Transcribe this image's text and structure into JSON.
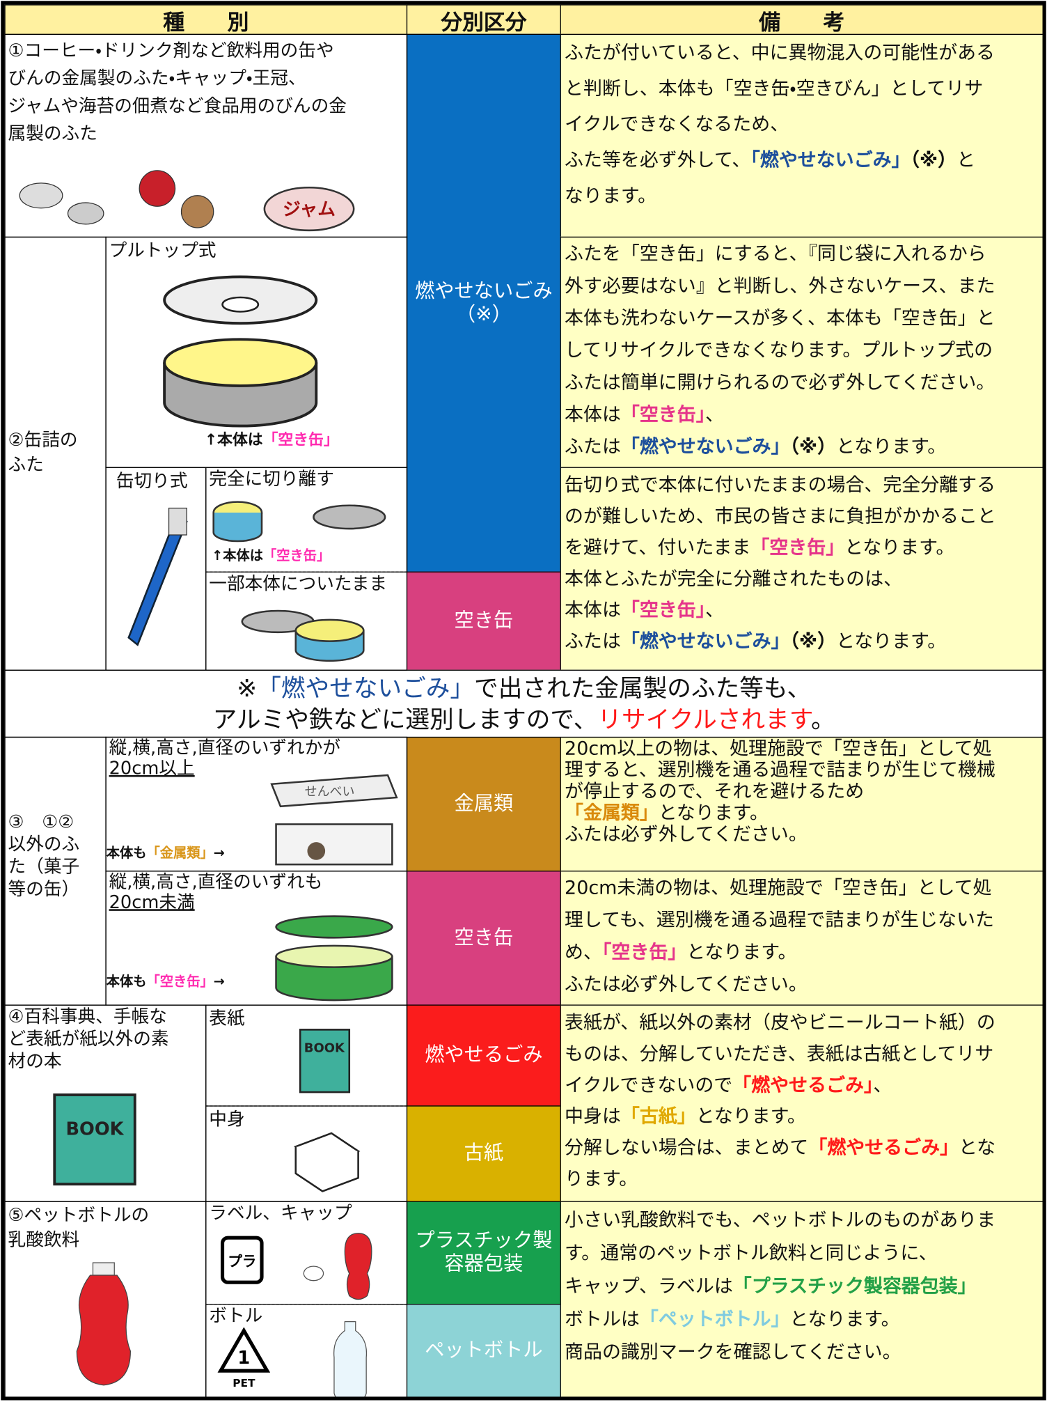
{
  "header": {
    "kind": "種　　別",
    "category": "分別区分",
    "remarks": "備　　考"
  },
  "categories": [
    {
      "label": [
        "燃やせないごみ",
        "（※）"
      ],
      "color": "#0a6fc2"
    },
    {
      "label": [
        "空き缶"
      ],
      "color": "#d8407f"
    },
    {
      "label": [
        "金属類"
      ],
      "color": "#c98a1c"
    },
    {
      "label": [
        "空き缶"
      ],
      "color": "#d8407f"
    },
    {
      "label": [
        "燃やせるごみ"
      ],
      "color": "#fb1c1c"
    },
    {
      "label": [
        "古紙"
      ],
      "color": "#d9b100"
    },
    {
      "label": [
        "プラスチック製",
        "容器包装"
      ],
      "color": "#17a04e"
    },
    {
      "label": [
        "ペットボトル"
      ],
      "color": "#8dd3d6"
    }
  ],
  "items": [
    {
      "kind": [
        [
          "①コーヒー・ドリンク剤など飲料用の缶や"
        ],
        [
          "びんの金属製のふた・キャップ・王冠、"
        ],
        [
          "ジャムや海苔の佃煮など食品用のびんの金"
        ],
        [
          "属製のふた"
        ]
      ],
      "icon_label": "ジャム"
    },
    {
      "kind": [
        [
          "②缶詰の"
        ],
        [
          "ふた"
        ]
      ],
      "subtypes": [
        {
          "label": "プルトップ式",
          "caption": [
            "↑本体は",
            {
              "text": "「空き缶」",
              "color": "#ff2bb0"
            }
          ]
        },
        {
          "label": "缶切り式",
          "variants": [
            {
              "label": "完全に切り離す",
              "caption": [
                "↑本体は",
                {
                  "text": "「空き缶」",
                  "color": "#ff2bb0"
                }
              ]
            },
            {
              "label": "一部本体についたまま"
            }
          ]
        }
      ]
    },
    {
      "kind": [
        [
          "③　①②"
        ],
        [
          "以外のふ"
        ],
        [
          "た（菓子"
        ],
        [
          "等の缶）"
        ]
      ],
      "subtypes": [
        {
          "label": [
            [
              "縦,横,高さ,直径のいずれかが"
            ],
            [
              {
                "text": "20cm以上",
                "underline": true
              }
            ]
          ],
          "caption": [
            "本体も",
            {
              "text": "「金属類」",
              "color": "#d9961a"
            },
            "→"
          ],
          "icon_label": "せんべい"
        },
        {
          "label": [
            [
              "縦,横,高さ,直径のいずれも"
            ],
            [
              {
                "text": "20cm未満",
                "underline": true
              }
            ]
          ],
          "caption": [
            "本体も",
            {
              "text": "「空き缶」",
              "color": "#ff2bb0"
            },
            "→"
          ]
        }
      ]
    },
    {
      "kind": [
        [
          "④百科事典、手帳な"
        ],
        [
          "ど表紙が紙以外の素"
        ],
        [
          "材の本"
        ]
      ],
      "icon_label": "BOOK",
      "subtypes": [
        {
          "label": "表紙",
          "icon_label": "BOOK"
        },
        {
          "label": "中身"
        }
      ]
    },
    {
      "kind": [
        [
          "⑤ペットボトルの"
        ],
        [
          "乳酸飲料"
        ]
      ],
      "subtypes": [
        {
          "label": "ラベル、キャップ",
          "icon_label": "プラ"
        },
        {
          "label": "ボトル",
          "icon_label": [
            "1",
            "PET"
          ]
        }
      ]
    }
  ],
  "remarks": [
    [
      [
        "ふたが付いていると、中に異物混入の可能性がある"
      ],
      [
        "と判断し、本体も「空き缶・空きびん」としてリサ"
      ],
      [
        "イクルできなくなるため、"
      ],
      [
        "ふた等を必ず外して、",
        {
          "text": "「燃やせないごみ」",
          "color": "#1d4f9c",
          "bold": true
        },
        {
          "text": "（※）",
          "bold": true
        },
        "と"
      ],
      [
        "なります。"
      ]
    ],
    [
      [
        "ふたを「空き缶」にすると、『同じ袋に入れるから"
      ],
      [
        "外す必要はない』と判断し、外さないケース、また"
      ],
      [
        "本体も洗わないケースが多く、本体も「空き缶」と"
      ],
      [
        "してリサイクルできなくなります。プルトップ式の"
      ],
      [
        "ふたは簡単に開けられるので必ず外してください。"
      ],
      [
        "本体は",
        {
          "text": "「空き缶」",
          "color": "#e5348a",
          "bold": true
        },
        "、"
      ],
      [
        "ふたは",
        {
          "text": "「燃やせないごみ」",
          "color": "#1d4f9c",
          "bold": true
        },
        {
          "text": "（※）",
          "bold": true
        },
        "となります。"
      ]
    ],
    [
      [
        "缶切り式で本体に付いたままの場合、完全分離する"
      ],
      [
        "のが難しいため、市民の皆さまに負担がかかること"
      ],
      [
        "を避けて、付いたまま",
        {
          "text": "「空き缶」",
          "color": "#e5348a",
          "bold": true
        },
        "となります。"
      ],
      [
        "本体とふたが完全に分離されたものは、"
      ],
      [
        "本体は",
        {
          "text": "「空き缶」",
          "color": "#e5348a",
          "bold": true
        },
        "、"
      ],
      [
        "ふたは",
        {
          "text": "「燃やせないごみ」",
          "color": "#1d4f9c",
          "bold": true
        },
        {
          "text": "（※）",
          "bold": true
        },
        "となります。"
      ]
    ],
    [
      [
        "20cm以上の物は、処理施設で「空き缶」として処"
      ],
      [
        "理すると、選別機を通る過程で詰まりが生じて機械"
      ],
      [
        "が停止するので、それを避けるため"
      ],
      [
        {
          "text": "「金属類」",
          "color": "#d98a0c",
          "bold": true
        },
        "となります。"
      ],
      [
        "ふたは必ず外してください。"
      ]
    ],
    [
      [
        "20cm未満の物は、処理施設で「空き缶」として処"
      ],
      [
        "理しても、選別機を通る過程で詰まりが生じないた"
      ],
      [
        "め、",
        {
          "text": "「空き缶」",
          "color": "#e5348a",
          "bold": true
        },
        "となります。"
      ],
      [
        "ふたは必ず外してください。"
      ]
    ],
    [
      [
        "表紙が、紙以外の素材（皮やビニールコート紙）の"
      ],
      [
        "ものは、分解していただき、表紙は古紙としてリサ"
      ],
      [
        "イクルできないので",
        {
          "text": "「燃やせるごみ」",
          "color": "#ff1a1a",
          "bold": true
        },
        "、"
      ],
      [
        "中身は",
        {
          "text": "「古紙」",
          "color": "#e0a800",
          "bold": true
        },
        "となります。"
      ],
      [
        "分解しない場合は、まとめて",
        {
          "text": "「燃やせるごみ」",
          "color": "#ff1a1a",
          "bold": true
        },
        "とな"
      ],
      [
        "ります。"
      ]
    ],
    [
      [
        "小さい乳酸飲料でも、ペットボトルのものがありま"
      ],
      [
        "す。通常のペットボトル飲料と同じように、"
      ],
      [
        "キャップ、ラベルは",
        {
          "text": "「プラスチック製容器包装」",
          "color": "#23a046",
          "bold": true
        }
      ],
      [
        "ボトルは",
        {
          "text": "「ペットボトル」",
          "color": "#7fcbe0",
          "bold": true
        },
        "となります。"
      ],
      [
        "商品の識別マークを確認してください。"
      ]
    ]
  ],
  "note": [
    [
      "※",
      {
        "text": "「燃やせないごみ」",
        "color": "#1d4f9c"
      },
      "で出された金属製のふた等も、"
    ],
    [
      "アルミや鉄などに選別しますので、",
      {
        "text": "リサイクルされます",
        "color": "#ff1a1a"
      },
      "。"
    ]
  ]
}
